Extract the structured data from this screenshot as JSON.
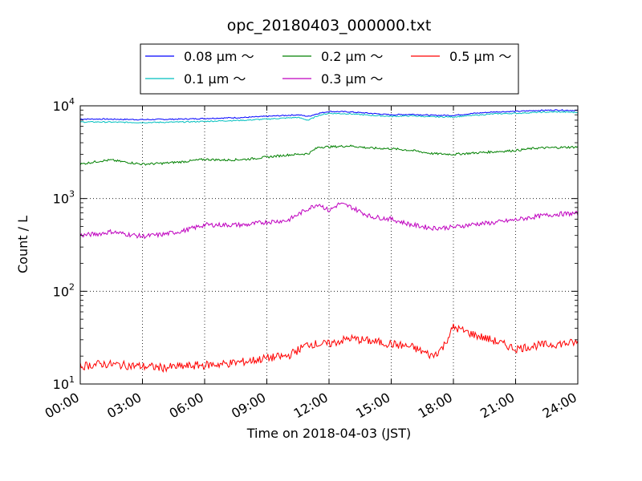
{
  "chart_data": {
    "type": "line",
    "title": "opc_20180403_000000.txt",
    "xlabel": "Time on 2018-04-03 (JST)",
    "ylabel": "Count / L",
    "x_ticks": [
      "00:00",
      "03:00",
      "06:00",
      "09:00",
      "12:00",
      "15:00",
      "18:00",
      "21:00",
      "24:00"
    ],
    "xlim_hours": [
      0,
      24
    ],
    "yscale": "log",
    "ylim": [
      10,
      10000
    ],
    "y_ticks": [
      {
        "value": 10,
        "base": "10",
        "exp": "1"
      },
      {
        "value": 100,
        "base": "10",
        "exp": "2"
      },
      {
        "value": 1000,
        "base": "10",
        "exp": "3"
      },
      {
        "value": 10000,
        "base": "10",
        "exp": "4"
      }
    ],
    "grid": true,
    "legend_position": "top-center",
    "series": [
      {
        "name": "0.08 μm ～",
        "color": "#0000ff",
        "x": [
          0,
          1,
          2,
          3,
          4,
          5,
          6,
          7,
          8,
          9,
          10,
          10.5,
          11,
          11.5,
          12,
          13,
          14,
          15,
          16,
          17,
          18,
          19,
          20,
          21,
          22,
          23,
          24
        ],
        "y": [
          7200,
          7200,
          7150,
          7100,
          7150,
          7200,
          7300,
          7400,
          7500,
          7700,
          7900,
          8000,
          7700,
          8300,
          8700,
          8600,
          8300,
          8000,
          8100,
          7900,
          7900,
          8300,
          8600,
          8700,
          8900,
          9000,
          8900
        ]
      },
      {
        "name": "0.1 μm ～",
        "color": "#00bfbf",
        "x": [
          0,
          1,
          2,
          3,
          4,
          5,
          6,
          7,
          8,
          9,
          10,
          10.5,
          11,
          11.5,
          12,
          13,
          14,
          15,
          16,
          17,
          18,
          19,
          20,
          21,
          22,
          23,
          24
        ],
        "y": [
          6700,
          6700,
          6650,
          6600,
          6650,
          6700,
          6800,
          6900,
          7000,
          7200,
          7400,
          7500,
          7000,
          7900,
          8300,
          8200,
          7900,
          7700,
          7800,
          7600,
          7600,
          7900,
          8200,
          8300,
          8500,
          8600,
          8500
        ]
      },
      {
        "name": "0.2 μm ～",
        "color": "#008000",
        "x": [
          0,
          1,
          1.5,
          2,
          3,
          4,
          5,
          6,
          7,
          8,
          9,
          10,
          11,
          11.5,
          12,
          13,
          14,
          15,
          16,
          17,
          18,
          19,
          20,
          21,
          22,
          23,
          24
        ],
        "y": [
          2350,
          2550,
          2600,
          2500,
          2350,
          2400,
          2500,
          2650,
          2600,
          2650,
          2800,
          2950,
          3050,
          3600,
          3600,
          3700,
          3500,
          3450,
          3300,
          3050,
          3000,
          3100,
          3200,
          3300,
          3500,
          3550,
          3600
        ]
      },
      {
        "name": "0.3 μm ～",
        "color": "#bf00bf",
        "x": [
          0,
          1,
          1.5,
          2,
          3,
          4,
          5,
          6,
          7,
          8,
          9,
          10,
          11,
          11.5,
          12,
          12.5,
          13,
          14,
          15,
          16,
          17,
          18,
          19,
          20,
          21,
          22,
          23,
          24
        ],
        "y": [
          400,
          420,
          440,
          420,
          390,
          410,
          450,
          520,
          520,
          520,
          560,
          580,
          780,
          880,
          740,
          880,
          820,
          640,
          600,
          520,
          480,
          490,
          530,
          550,
          590,
          640,
          680,
          690
        ]
      },
      {
        "name": "0.5 μm ～",
        "color": "#ff0000",
        "x": [
          0,
          1,
          2,
          3,
          4,
          5,
          6,
          7,
          8,
          9,
          10,
          11,
          11.5,
          12,
          13,
          14,
          15,
          16,
          17,
          17.5,
          18,
          19,
          20,
          21,
          22,
          23,
          24
        ],
        "y": [
          15.5,
          16.5,
          16,
          15.5,
          15,
          15.5,
          16,
          16.5,
          17.5,
          19,
          20,
          27,
          27,
          27,
          31,
          29,
          27,
          25,
          20,
          25,
          41,
          34,
          29,
          24,
          26,
          27,
          28
        ]
      }
    ]
  }
}
